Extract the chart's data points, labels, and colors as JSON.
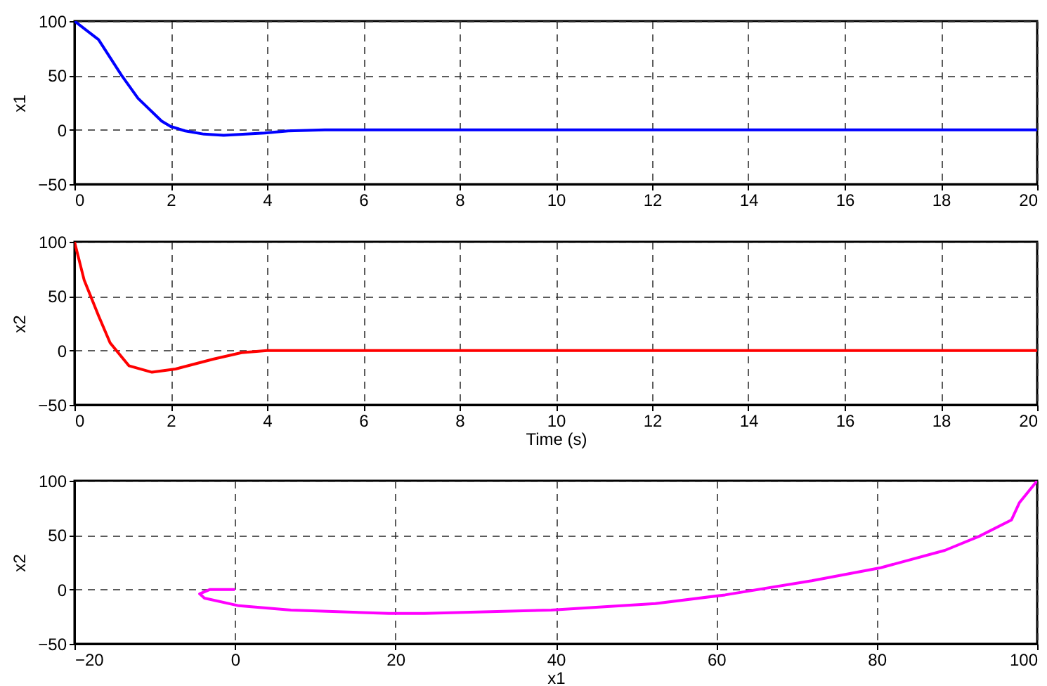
{
  "chart_data": [
    {
      "type": "line",
      "ylabel": "x1",
      "x": [
        0,
        0.5,
        0.98,
        1.32,
        1.81,
        2,
        2.3,
        2.69,
        3.1,
        3.95,
        4.44,
        5.2,
        6,
        8,
        10,
        12,
        14,
        16,
        18,
        20
      ],
      "series": [
        {
          "color": "#0000ff",
          "values": [
            100,
            83,
            50,
            29,
            8,
            3,
            -1,
            -4,
            -5,
            -3,
            -1,
            0,
            0,
            0,
            0,
            0,
            0,
            0,
            0,
            0
          ]
        }
      ],
      "xlim": [
        0,
        20
      ],
      "xticks": [
        0,
        2,
        4,
        6,
        8,
        10,
        12,
        14,
        16,
        18,
        20
      ],
      "ylim": [
        -50,
        100
      ],
      "yticks": [
        -50,
        0,
        50,
        100
      ],
      "grid": true
    },
    {
      "type": "line",
      "xlabel": "Time (s)",
      "ylabel": "x2",
      "x": [
        0,
        0.2,
        0.5,
        0.74,
        1.13,
        1.61,
        2.1,
        2.88,
        3.47,
        4,
        6,
        8,
        10,
        12,
        14,
        16,
        18,
        20
      ],
      "series": [
        {
          "color": "#ff0000",
          "values": [
            100,
            65,
            32,
            7,
            -14,
            -20,
            -17,
            -8,
            -2,
            0,
            0,
            0,
            0,
            0,
            0,
            0,
            0,
            0
          ]
        }
      ],
      "xlim": [
        0,
        20
      ],
      "xticks": [
        0,
        2,
        4,
        6,
        8,
        10,
        12,
        14,
        16,
        18,
        20
      ],
      "ylim": [
        -50,
        100
      ],
      "yticks": [
        -50,
        0,
        50,
        100
      ],
      "grid": true
    },
    {
      "type": "line",
      "xlabel": "x1",
      "ylabel": "x2",
      "x": [
        100,
        97.8,
        96.8,
        92.8,
        88.5,
        80.5,
        71.9,
        61.1,
        52.4,
        39.4,
        23.6,
        19.2,
        7,
        0.5,
        -3.8,
        -4.4,
        -3.1,
        0
      ],
      "series": [
        {
          "color": "#ff00ff",
          "values": [
            100,
            80,
            64,
            49,
            36,
            20,
            8,
            -5,
            -13,
            -19,
            -22,
            -22,
            -19,
            -15,
            -8,
            -4,
            0,
            0
          ]
        }
      ],
      "xlim": [
        -20,
        100
      ],
      "xticks": [
        -20,
        0,
        20,
        40,
        60,
        80,
        100
      ],
      "ylim": [
        -50,
        100
      ],
      "yticks": [
        -50,
        0,
        50,
        100
      ],
      "grid": true
    }
  ]
}
